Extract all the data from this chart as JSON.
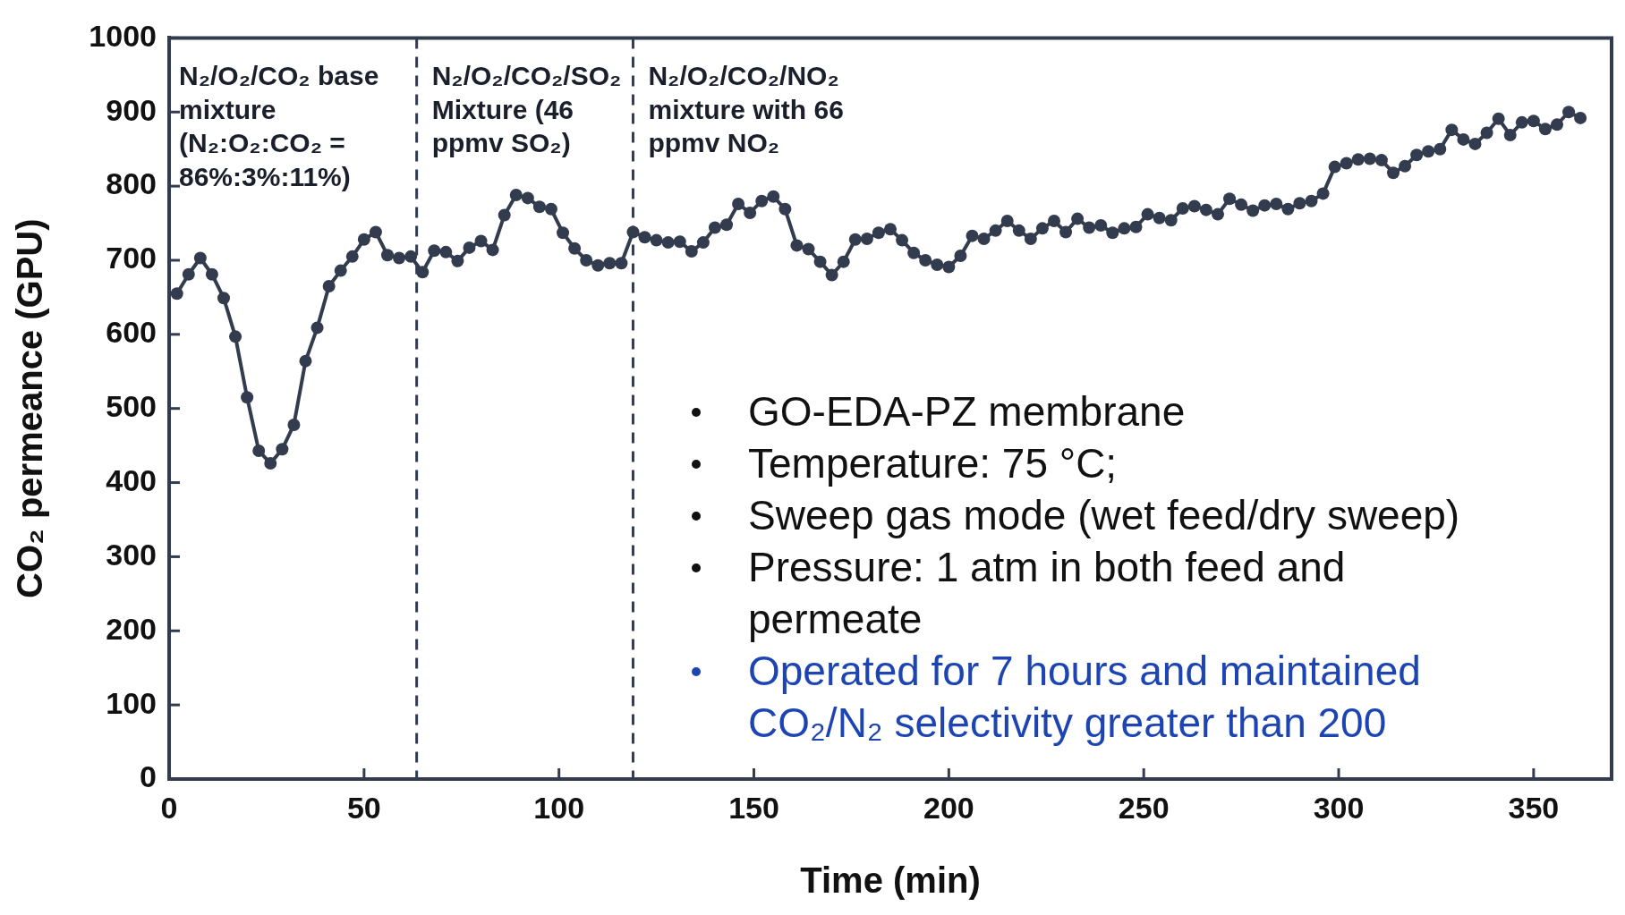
{
  "chart_data": {
    "type": "line",
    "xlabel": "Time (min)",
    "ylabel": "CO₂ permeance (GPU)",
    "x": [
      2,
      5,
      8,
      11,
      14,
      17,
      20,
      23,
      26,
      29,
      32,
      35,
      38,
      41,
      44,
      47,
      50,
      53,
      56,
      59,
      62,
      65,
      68,
      71,
      74,
      77,
      80,
      83,
      86,
      89,
      92,
      95,
      98,
      101,
      104,
      107,
      110,
      113,
      116,
      119,
      122,
      125,
      128,
      131,
      134,
      137,
      140,
      143,
      146,
      149,
      152,
      155,
      158,
      161,
      164,
      167,
      170,
      173,
      176,
      179,
      182,
      185,
      188,
      191,
      194,
      197,
      200,
      203,
      206,
      209,
      212,
      215,
      218,
      221,
      224,
      227,
      230,
      233,
      236,
      239,
      242,
      245,
      248,
      251,
      254,
      257,
      260,
      263,
      266,
      269,
      272,
      275,
      278,
      281,
      284,
      287,
      290,
      293,
      296,
      299,
      302,
      305,
      308,
      311,
      314,
      317,
      320,
      323,
      326,
      329,
      332,
      335,
      338,
      341,
      344,
      347,
      350,
      353,
      356,
      359,
      362
    ],
    "series": [
      {
        "color": "#333c4e",
        "values": [
          655,
          681,
          703,
          681,
          649,
          597,
          515,
          443,
          426,
          445,
          478,
          564,
          609,
          665,
          686,
          705,
          728,
          738,
          707,
          703,
          705,
          684,
          713,
          711,
          699,
          717,
          726,
          714,
          761,
          788,
          784,
          772,
          769,
          737,
          716,
          700,
          693,
          696,
          696,
          738,
          731,
          727,
          724,
          725,
          712,
          724,
          744,
          748,
          776,
          764,
          780,
          786,
          769,
          720,
          715,
          698,
          680,
          698,
          728,
          729,
          737,
          742,
          727,
          710,
          700,
          694,
          691,
          706,
          733,
          729,
          740,
          753,
          740,
          729,
          743,
          753,
          738,
          756,
          744,
          747,
          737,
          743,
          745,
          762,
          757,
          754,
          770,
          773,
          768,
          762,
          783,
          775,
          767,
          774,
          776,
          769,
          777,
          780,
          790,
          826,
          831,
          836,
          837,
          835,
          818,
          827,
          842,
          847,
          850,
          876,
          863,
          857,
          872,
          891,
          869,
          886,
          888,
          877,
          883,
          900,
          892
        ]
      }
    ],
    "xlim": [
      0,
      370
    ],
    "xticks": [
      0,
      50,
      100,
      150,
      200,
      250,
      300,
      350
    ],
    "ylim": [
      0,
      1000
    ],
    "yticks": [
      0,
      100,
      200,
      300,
      400,
      500,
      600,
      700,
      800,
      900,
      1000
    ],
    "grid": false,
    "legend": false,
    "marker": "circle",
    "line_style": "solid",
    "ref_lines": [
      {
        "axis": "x",
        "value": 63.5,
        "color": "#333c4e",
        "line_style": "dashed"
      },
      {
        "axis": "x",
        "value": 119,
        "color": "#333c4e",
        "line_style": "dashed"
      }
    ],
    "annotations": [
      "N₂/O₂/CO₂ base mixture (N₂:O₂:CO₂ = 86%:3%:11%)",
      "N₂/O₂/CO₂/SO₂ Mixture (46 ppmv SO₂)",
      "N₂/O₂/CO₂/NO₂ mixture with 66 ppmv NO₂",
      "GO-EDA-PZ membrane",
      "Temperature: 75 °C;",
      "Sweep gas mode (wet feed/dry sweep)",
      "Pressure: 1 atm in both feed and permeate",
      "Operated for 7 hours and maintained CO₂/N₂ selectivity greater than 200"
    ]
  }
}
